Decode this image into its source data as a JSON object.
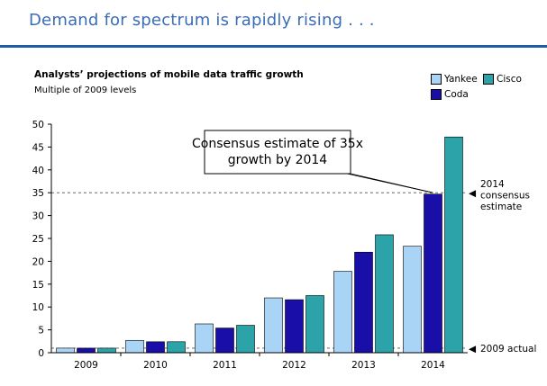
{
  "slide": {
    "title": "Demand for spectrum is rapidly rising . . ."
  },
  "colors": {
    "title_text": "#3a6db5",
    "title_rule": "#1f5ca6",
    "yankee": "#a9d4f5",
    "coda": "#1a0ea8",
    "cisco": "#2ba3a8",
    "reference_line": "#555555"
  },
  "chart_data": {
    "type": "bar",
    "title": "Analysts’ projections of mobile data traffic growth",
    "subtitle": "Multiple of 2009 levels",
    "categories": [
      "2009",
      "2010",
      "2011",
      "2012",
      "2013",
      "2014"
    ],
    "series": [
      {
        "name": "Yankee",
        "color": "#a9d4f5",
        "values": [
          1,
          2.7,
          6.3,
          12,
          17.8,
          23.3
        ]
      },
      {
        "name": "Coda",
        "color": "#1a0ea8",
        "values": [
          1,
          2.4,
          5.4,
          11.6,
          22,
          34.7
        ]
      },
      {
        "name": "Cisco",
        "color": "#2ba3a8",
        "values": [
          1,
          2.4,
          6,
          12.5,
          25.8,
          47.2
        ]
      }
    ],
    "ylim": [
      0,
      50
    ],
    "yticks": [
      "0",
      "5",
      "10",
      "15",
      "20",
      "25",
      "30",
      "35",
      "40",
      "45",
      "50"
    ],
    "grid": false,
    "legend": {
      "placement": "top-right",
      "entries": [
        "Yankee",
        "Cisco",
        "Coda"
      ]
    },
    "reference_lines": [
      {
        "value": 35,
        "label_lines": [
          "2014",
          "consensus",
          "estimate"
        ],
        "marker": "◀"
      },
      {
        "value": 1,
        "label_lines": [
          "2009 actual"
        ],
        "marker": "◀"
      }
    ],
    "callout": {
      "lines": [
        "Consensus estimate of 35x",
        "growth by 2014"
      ]
    }
  }
}
